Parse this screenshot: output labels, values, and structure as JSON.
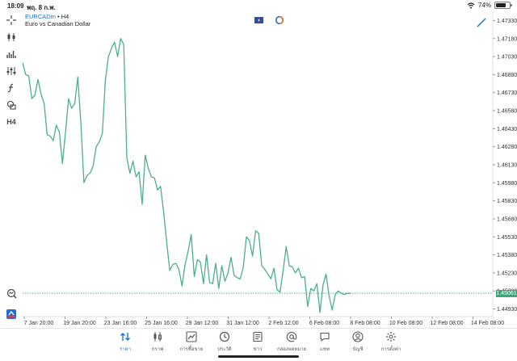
{
  "status_bar": {
    "time": "18:09",
    "date": "พฤ. 8 ก.พ.",
    "battery": "74%",
    "battery_level": 0.74
  },
  "symbol_header": {
    "symbol": "EURCADm",
    "timeframe": " • H4",
    "description": "Euro vs Canadian Dollar"
  },
  "toolbar": {
    "timeframe_label": "H4"
  },
  "colors": {
    "line": "#4caf8e",
    "current_price_bg": "#3aa77a",
    "accent": "#1e6fd9"
  },
  "chart_data": {
    "type": "line",
    "price_ticks": [
      "1.47330",
      "1.47180",
      "1.47030",
      "1.46880",
      "1.46730",
      "1.46580",
      "1.46430",
      "1.46280",
      "1.46130",
      "1.45980",
      "1.45830",
      "1.45680",
      "1.45530",
      "1.45380",
      "1.45230",
      "1.45080",
      "1.44930"
    ],
    "time_ticks": [
      "7 Jan 20:00",
      "19 Jan 20:00",
      "23 Jan 16:00",
      "25 Jan 16:00",
      "29 Jan 12:00",
      "31 Jan 12:00",
      "2 Feb 12:00",
      "6 Feb 08:00",
      "8 Feb 08:00",
      "10 Feb 08:00",
      "12 Feb 08:00",
      "14 Feb 08:00"
    ],
    "current_price": "1.45061",
    "ylim": [
      1.4488,
      1.4738
    ],
    "grid": false,
    "series": [
      {
        "values": [
          1.4698,
          1.4688,
          1.4687,
          1.4668,
          1.4671,
          1.4684,
          1.4672,
          1.4664,
          1.4638,
          1.4637,
          1.4633,
          1.4646,
          1.464,
          1.4614,
          1.464,
          1.4668,
          1.466,
          1.4664,
          1.4686,
          1.4648,
          1.4598,
          1.4604,
          1.4606,
          1.4612,
          1.4628,
          1.4632,
          1.4639,
          1.4683,
          1.4703,
          1.471,
          1.4715,
          1.4703,
          1.4718,
          1.4713,
          1.4619,
          1.4606,
          1.4616,
          1.4603,
          1.4607,
          1.458,
          1.4621,
          1.461,
          1.4603,
          1.4602,
          1.4592,
          1.4595,
          1.4574,
          1.4549,
          1.4525,
          1.453,
          1.4531,
          1.4526,
          1.4512,
          1.453,
          1.4541,
          1.4555,
          1.452,
          1.4534,
          1.4532,
          1.4514,
          1.4538,
          1.4515,
          1.4514,
          1.4531,
          1.451,
          1.4529,
          1.4516,
          1.4523,
          1.4536,
          1.4521,
          1.4519,
          1.4518,
          1.4528,
          1.4553,
          1.455,
          1.4537,
          1.4558,
          1.4556,
          1.4529,
          1.4526,
          1.4522,
          1.4518,
          1.4527,
          1.4509,
          1.4507,
          1.4525,
          1.4545,
          1.4529,
          1.4528,
          1.4523,
          1.4527,
          1.4519,
          1.452,
          1.4495,
          1.451,
          1.4508,
          1.4514,
          1.449,
          1.4513,
          1.4522,
          1.4504,
          1.4492,
          1.4505,
          1.4508,
          1.4506,
          1.4505,
          1.4506,
          1.4506
        ]
      }
    ]
  },
  "nav": {
    "items": [
      {
        "label": "ราคา",
        "icon": "quotes-icon"
      },
      {
        "label": "กราฟ",
        "icon": "chart-icon"
      },
      {
        "label": "การซื้อขาย",
        "icon": "trade-icon"
      },
      {
        "label": "ประวัติ",
        "icon": "history-icon"
      },
      {
        "label": "ข่าว",
        "icon": "news-icon"
      },
      {
        "label": "กล่องจดหมาย",
        "icon": "mailbox-icon"
      },
      {
        "label": "แชท",
        "icon": "chat-icon"
      },
      {
        "label": "บัญชี",
        "icon": "account-icon"
      },
      {
        "label": "การตั้งค่า",
        "icon": "settings-icon"
      }
    ]
  }
}
